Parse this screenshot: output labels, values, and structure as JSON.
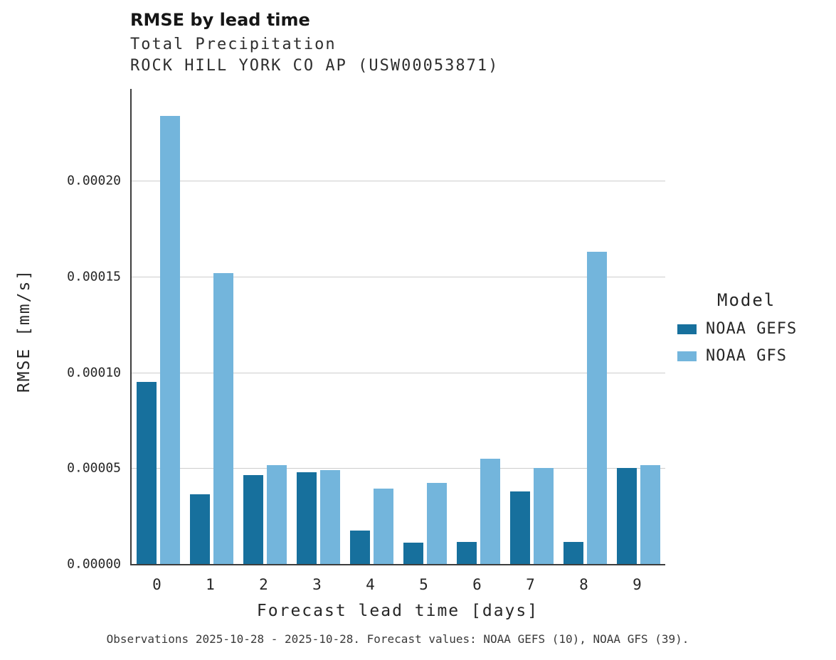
{
  "header": {
    "title": "RMSE by lead time",
    "subtitle1": "Total Precipitation",
    "subtitle2": "ROCK HILL YORK CO AP (USW00053871)"
  },
  "chart_data": {
    "type": "bar",
    "title": "RMSE by lead time",
    "subtitle": [
      "Total Precipitation",
      "ROCK HILL YORK CO AP (USW00053871)"
    ],
    "xlabel": "Forecast lead time [days]",
    "ylabel": "RMSE [mm/s]",
    "categories": [
      "0",
      "1",
      "2",
      "3",
      "4",
      "5",
      "6",
      "7",
      "8",
      "9"
    ],
    "series": [
      {
        "name": "NOAA GEFS",
        "color": "#17709d",
        "values": [
          9.5e-05,
          3.65e-05,
          4.65e-05,
          4.8e-05,
          1.75e-05,
          1.1e-05,
          1.15e-05,
          3.8e-05,
          1.15e-05,
          5e-05
        ]
      },
      {
        "name": "NOAA GFS",
        "color": "#73b5dc",
        "values": [
          0.000234,
          0.000152,
          5.15e-05,
          4.9e-05,
          3.95e-05,
          4.25e-05,
          5.5e-05,
          5e-05,
          0.000163,
          5.15e-05
        ]
      }
    ],
    "ylim": [
      0,
      0.000248
    ],
    "yticks": [
      0,
      5e-05,
      0.0001,
      0.00015,
      0.0002
    ],
    "ytick_labels": [
      "0.00000",
      "0.00005",
      "0.00010",
      "0.00015",
      "0.00020"
    ],
    "grid": true,
    "legend_title": "Model",
    "legend_position": "right"
  },
  "legend": {
    "title": "Model",
    "items": [
      {
        "label": "NOAA GEFS",
        "color": "#17709d"
      },
      {
        "label": "NOAA GFS",
        "color": "#73b5dc"
      }
    ]
  },
  "caption": "Observations 2025-10-28 - 2025-10-28. Forecast values: NOAA GEFS (10), NOAA GFS (39)."
}
